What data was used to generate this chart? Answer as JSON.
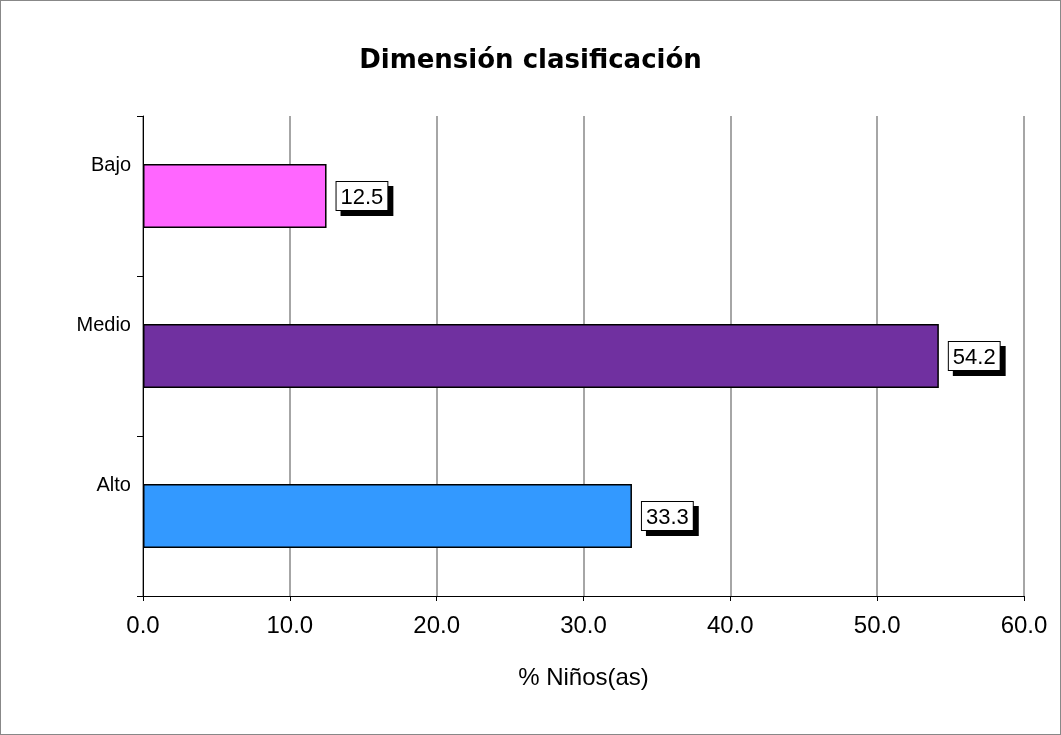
{
  "chart_data": {
    "type": "bar",
    "orientation": "horizontal",
    "title": "Dimensión clasificación",
    "xlabel": "% Niños(as)",
    "categories": [
      "Bajo",
      "Medio",
      "Alto"
    ],
    "values": [
      12.5,
      54.2,
      33.3
    ],
    "colors": [
      "#ff66ff",
      "#7030a0",
      "#3399ff"
    ],
    "xlim": [
      0,
      60
    ],
    "xticks": [
      {
        "value": 0,
        "label": "0.0"
      },
      {
        "value": 10,
        "label": "10.0"
      },
      {
        "value": 20,
        "label": "20.0"
      },
      {
        "value": 30,
        "label": "30.0"
      },
      {
        "value": 40,
        "label": "40.0"
      },
      {
        "value": 50,
        "label": "50.0"
      },
      {
        "value": 60,
        "label": "60.0"
      }
    ],
    "grid": "x",
    "data_labels": true
  }
}
